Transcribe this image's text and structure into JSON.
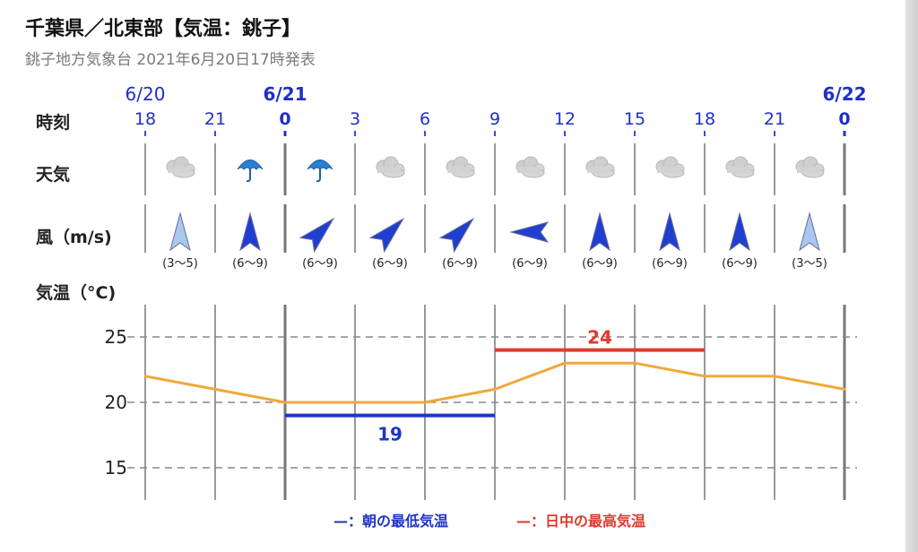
{
  "header": {
    "title": "千葉県／北東部【気温：銚子】",
    "subtitle": "銚子地方気象台 2021年6月20日17時発表"
  },
  "labels": {
    "time": "時刻",
    "weather": "天気",
    "wind": "風（m/s)",
    "temp": "気温（°C)"
  },
  "timeline": {
    "dates": [
      "6/20",
      "6/21",
      "6/22"
    ],
    "hours": [
      "18",
      "21",
      "0",
      "3",
      "6",
      "9",
      "12",
      "15",
      "18",
      "21",
      "0"
    ]
  },
  "weather": [
    "cloud-icon",
    "umbrella-icon",
    "umbrella-icon",
    "cloud-icon",
    "cloud-icon",
    "cloud-icon",
    "cloud-icon",
    "cloud-icon",
    "cloud-icon",
    "cloud-icon"
  ],
  "wind": [
    {
      "dir": "N",
      "speed": "(3～5)",
      "color": "#a8c8ee"
    },
    {
      "dir": "N",
      "speed": "(6～9)",
      "color": "#1f3fd0"
    },
    {
      "dir": "NE",
      "speed": "(6～9)",
      "color": "#1f3fd0"
    },
    {
      "dir": "NE",
      "speed": "(6～9)",
      "color": "#1f3fd0"
    },
    {
      "dir": "NE",
      "speed": "(6～9)",
      "color": "#1f3fd0"
    },
    {
      "dir": "W",
      "speed": "(6～9)",
      "color": "#1f3fd0"
    },
    {
      "dir": "N",
      "speed": "(6～9)",
      "color": "#1f3fd0"
    },
    {
      "dir": "N",
      "speed": "(6～9)",
      "color": "#1f3fd0"
    },
    {
      "dir": "N",
      "speed": "(6～9)",
      "color": "#1f3fd0"
    },
    {
      "dir": "N",
      "speed": "(3～5)",
      "color": "#a8c8ee"
    }
  ],
  "chart_data": {
    "type": "line",
    "x": [
      "18",
      "21",
      "0",
      "3",
      "6",
      "9",
      "12",
      "15",
      "18",
      "21",
      "0"
    ],
    "series": [
      {
        "values": [
          22,
          21,
          20,
          20,
          20,
          21,
          23,
          23,
          22,
          22,
          21
        ],
        "color": "#f0a83c"
      }
    ],
    "ylabel": "気温（°C)",
    "yticks": [
      15,
      20,
      25
    ],
    "ylim": [
      12.5,
      27.5
    ],
    "grid": true,
    "min_temp": {
      "value": 19,
      "label": "19",
      "from": "0",
      "to": "9",
      "color": "#1f35c8"
    },
    "max_temp": {
      "value": 24,
      "label": "24",
      "from": "9",
      "to": "18",
      "color": "#e03a2e"
    }
  },
  "legend": {
    "min": "—：朝の最低気温",
    "max": "—：日中の最高気温"
  }
}
